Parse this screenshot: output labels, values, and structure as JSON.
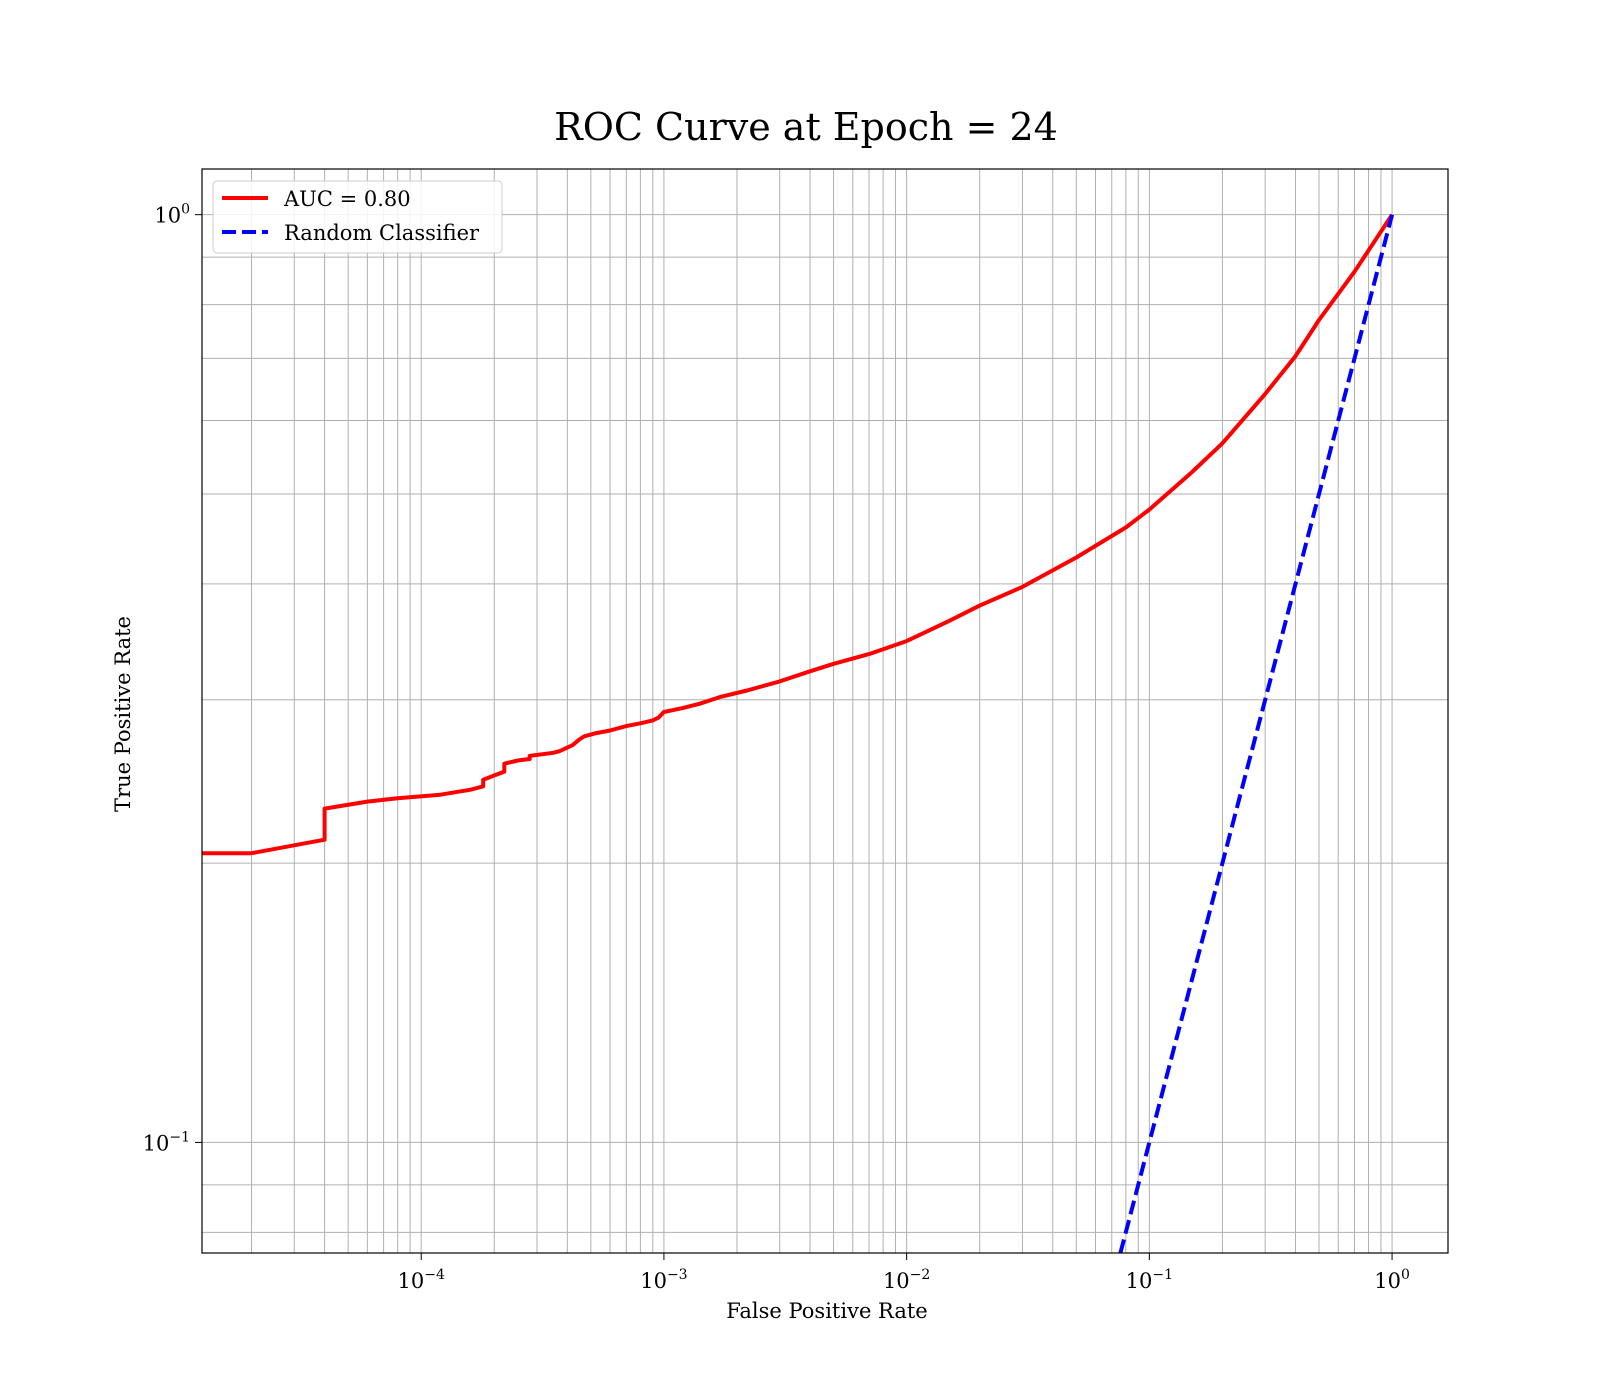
{
  "chart_data": {
    "type": "line",
    "title": "ROC Curve at Epoch = 24",
    "xlabel": "False Positive Rate",
    "ylabel": "True Positive Rate",
    "xscale": "log",
    "yscale": "log",
    "xlim": [
      1.25e-05,
      1.7
    ],
    "ylim": [
      0.076,
      1.12
    ],
    "grid": true,
    "grid_minor": true,
    "legend_position": "upper-left",
    "x_ticks": [
      {
        "base": "10",
        "exp": "−4",
        "value": 0.0001
      },
      {
        "base": "10",
        "exp": "−3",
        "value": 0.001
      },
      {
        "base": "10",
        "exp": "−2",
        "value": 0.01
      },
      {
        "base": "10",
        "exp": "−1",
        "value": 0.1
      },
      {
        "base": "10",
        "exp": "0",
        "value": 1
      }
    ],
    "y_ticks": [
      {
        "base": "10",
        "exp": "−1",
        "value": 0.1
      },
      {
        "base": "10",
        "exp": "0",
        "value": 1
      }
    ],
    "series": [
      {
        "name": "AUC = 0.80",
        "color": "#ff0000",
        "style": "solid",
        "x": [
          1.25e-05,
          2e-05,
          4e-05,
          4e-05,
          6e-05,
          8e-05,
          0.00012,
          0.00016,
          0.00018,
          0.00018,
          0.00022,
          0.00022,
          0.00025,
          0.00028,
          0.00028,
          0.00035,
          0.00037,
          0.00042,
          0.00045,
          0.00047,
          0.00052,
          0.0006,
          0.0007,
          0.0008,
          0.0009,
          0.00095,
          0.001,
          0.0012,
          0.0014,
          0.0017,
          0.0022,
          0.003,
          0.004,
          0.005,
          0.007,
          0.01,
          0.015,
          0.02,
          0.03,
          0.05,
          0.08,
          0.1,
          0.15,
          0.2,
          0.3,
          0.4,
          0.5,
          0.7,
          1.0
        ],
        "y": [
          0.205,
          0.205,
          0.212,
          0.229,
          0.233,
          0.235,
          0.237,
          0.24,
          0.242,
          0.246,
          0.251,
          0.256,
          0.258,
          0.259,
          0.261,
          0.263,
          0.264,
          0.268,
          0.272,
          0.274,
          0.276,
          0.278,
          0.281,
          0.283,
          0.285,
          0.287,
          0.291,
          0.294,
          0.297,
          0.302,
          0.307,
          0.314,
          0.322,
          0.328,
          0.336,
          0.347,
          0.365,
          0.379,
          0.397,
          0.427,
          0.46,
          0.481,
          0.528,
          0.567,
          0.641,
          0.704,
          0.77,
          0.868,
          1.0
        ]
      },
      {
        "name": "Random Classifier",
        "color": "#0000ff",
        "style": "dashed",
        "x": [
          0.076,
          1.0
        ],
        "y": [
          0.076,
          1.0
        ]
      }
    ]
  }
}
